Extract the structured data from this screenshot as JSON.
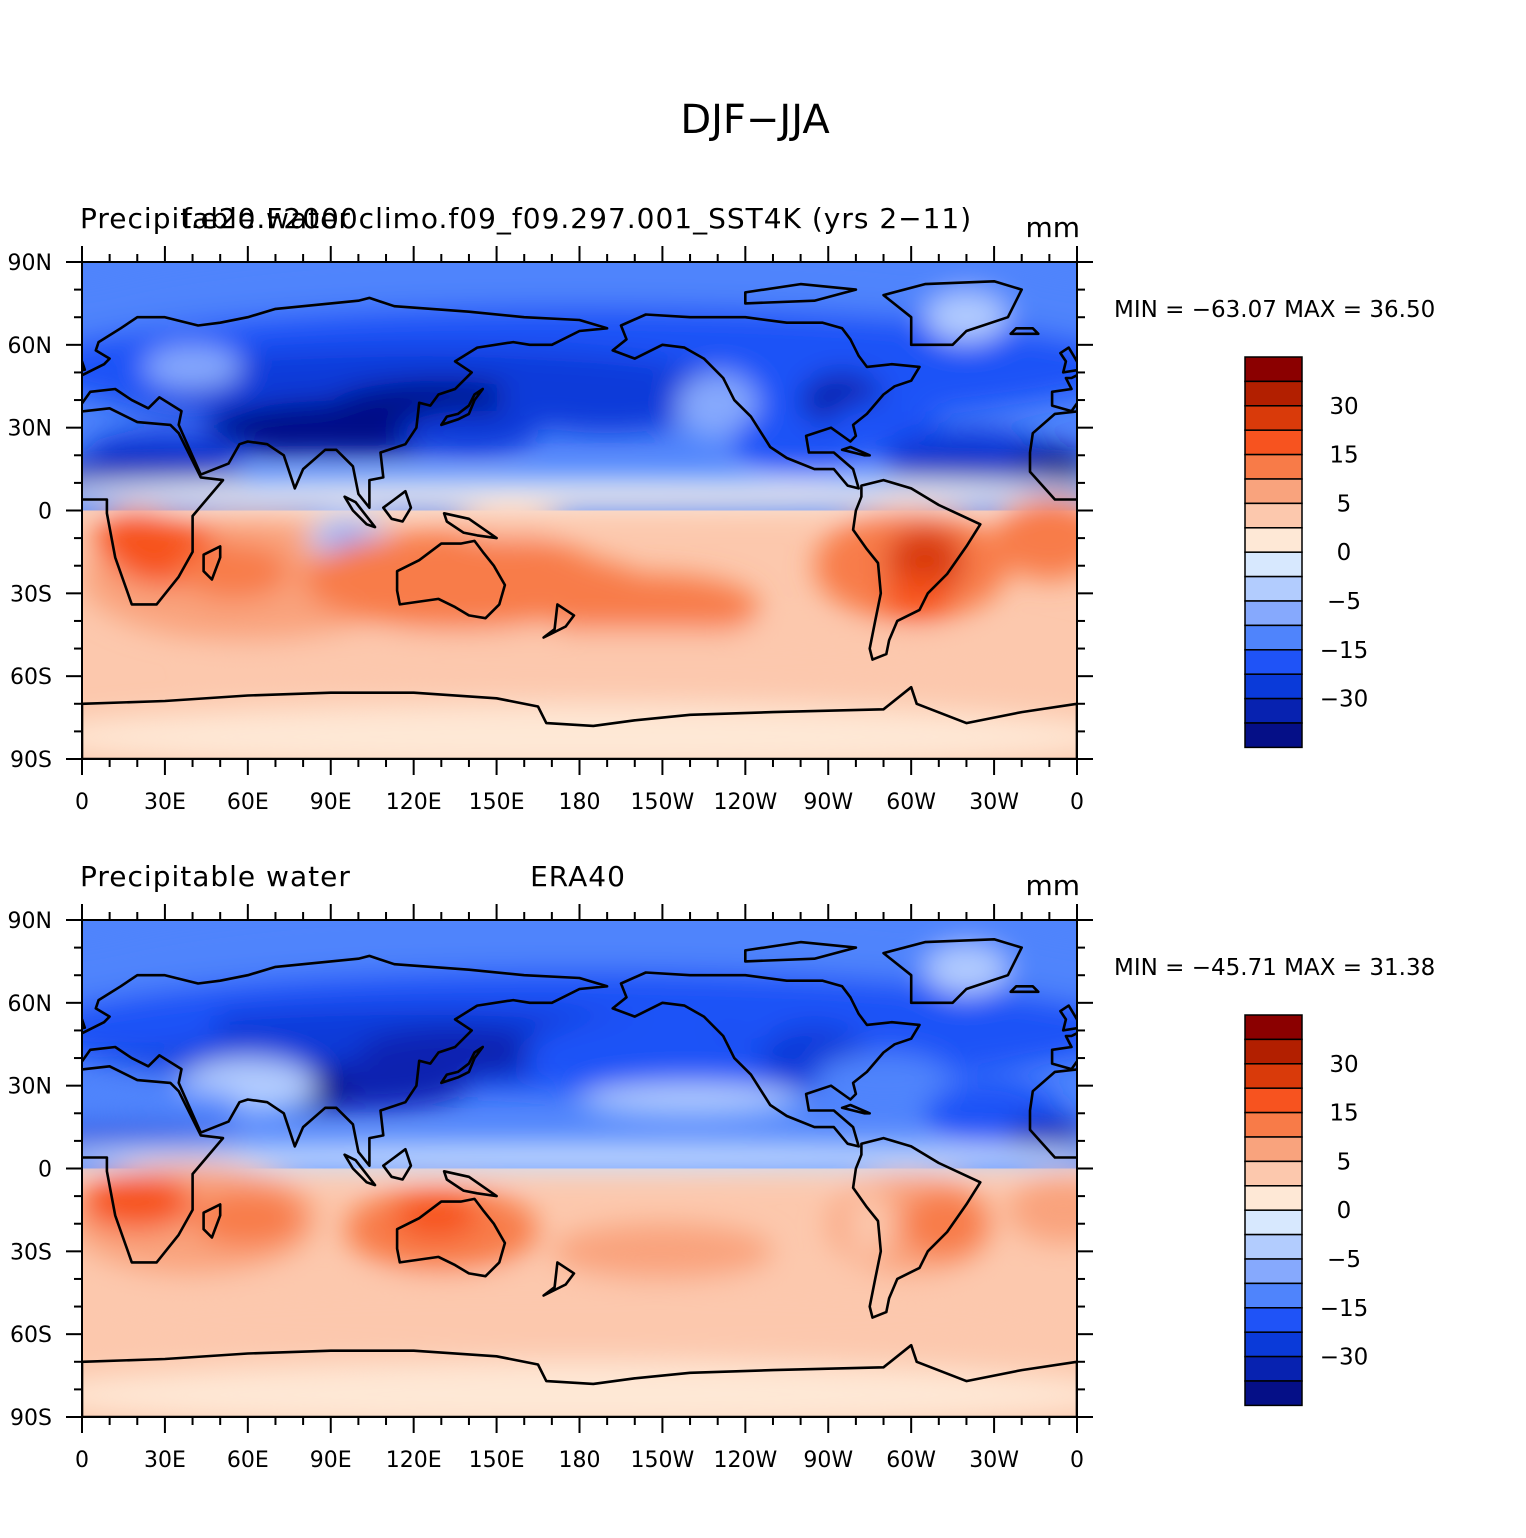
{
  "figure": {
    "title": "DJF−JJA"
  },
  "colorbar": {
    "colors": [
      "#8b0000",
      "#b21f00",
      "#d93a0a",
      "#f7531f",
      "#f87b48",
      "#f9a37d",
      "#fcc8ad",
      "#fee8d6",
      "#d7e8fe",
      "#b2ccfe",
      "#86a9fd",
      "#4f84fc",
      "#1f53f7",
      "#0a3ad9",
      "#0722b0",
      "#050f87"
    ],
    "labels": [
      "30",
      "15",
      "5",
      "0",
      "−5",
      "−15",
      "−30"
    ],
    "land_color": "#000000"
  },
  "chart_data": [
    {
      "type": "heatmap",
      "left_title": "Precipitable water",
      "center_title": "f.e20.F2000climo.f09_f09.297.001_SST4K (yrs 2−11)",
      "units": "mm",
      "stats": "MIN = −63.07  MAX =   36.50",
      "min": -63.07,
      "max": 36.5,
      "x_ticks": [
        "0",
        "30E",
        "60E",
        "90E",
        "120E",
        "150E",
        "180",
        "150W",
        "120W",
        "90W",
        "60W",
        "30W",
        "0"
      ],
      "y_ticks": [
        "90N",
        "60N",
        "30N",
        "0",
        "30S",
        "60S",
        "90S"
      ],
      "xlim": [
        0,
        360
      ],
      "ylim": [
        -90,
        90
      ]
    },
    {
      "type": "heatmap",
      "left_title": "Precipitable water",
      "center_title": "ERA40",
      "units": "mm",
      "stats": "MIN = −45.71  MAX =   31.38",
      "min": -45.71,
      "max": 31.38,
      "x_ticks": [
        "0",
        "30E",
        "60E",
        "90E",
        "120E",
        "150E",
        "180",
        "150W",
        "120W",
        "90W",
        "60W",
        "30W",
        "0"
      ],
      "y_ticks": [
        "90N",
        "60N",
        "30N",
        "0",
        "30S",
        "60S",
        "90S"
      ],
      "xlim": [
        0,
        360
      ],
      "ylim": [
        -90,
        90
      ]
    }
  ]
}
